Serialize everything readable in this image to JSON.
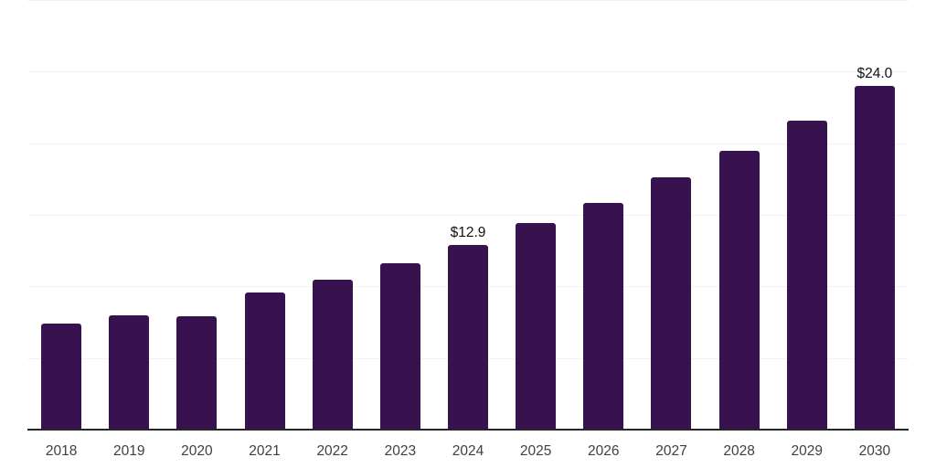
{
  "chart_data": {
    "type": "bar",
    "title": "",
    "categories": [
      "2018",
      "2019",
      "2020",
      "2021",
      "2022",
      "2023",
      "2024",
      "2025",
      "2026",
      "2027",
      "2028",
      "2029",
      "2030"
    ],
    "values": [
      7.4,
      8.0,
      7.9,
      9.6,
      10.5,
      11.6,
      12.9,
      14.4,
      15.8,
      17.6,
      19.5,
      21.6,
      24.0
    ],
    "annotations": [
      {
        "category": "2024",
        "text": "$12.9"
      },
      {
        "category": "2030",
        "text": "$24.0"
      }
    ],
    "xlabel": "",
    "ylabel": "",
    "ylim": [
      0,
      30
    ],
    "gridline_step": 5,
    "grid": true,
    "legend_position": "none",
    "colors": {
      "bar_fill": "#38124F",
      "gridline": "#F2F2F2",
      "axis_line": "#262626",
      "tick_label": "#404040",
      "data_label": "#111111",
      "background": "#FFFFFF"
    }
  }
}
